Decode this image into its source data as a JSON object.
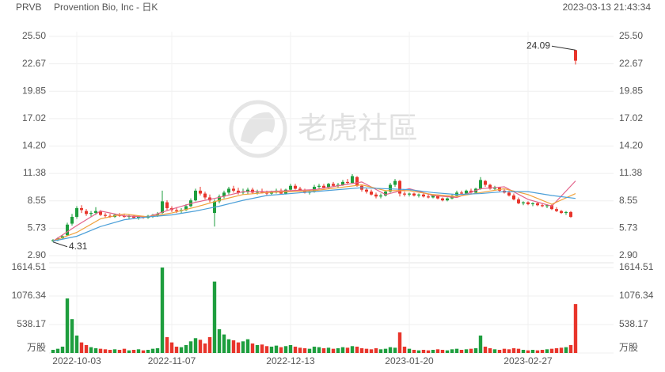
{
  "chart_data": {
    "type": "candlestick",
    "symbol": "PRVB",
    "title": "Provention Bio, Inc - 日K",
    "timestamp": "2023-03-13 21:43:34",
    "watermark": "老虎社區",
    "up_color": "#1e9e3e",
    "down_color": "#e8352b",
    "grid": true,
    "categories": [
      null,
      null,
      null,
      null,
      null,
      "2022-10-03",
      null,
      null,
      null,
      null,
      null,
      null,
      null,
      null,
      null,
      null,
      null,
      null,
      null,
      null,
      null,
      null,
      null,
      null,
      null,
      "2022-11-07",
      null,
      null,
      null,
      null,
      null,
      null,
      null,
      null,
      null,
      null,
      null,
      null,
      null,
      null,
      null,
      null,
      null,
      null,
      null,
      null,
      null,
      null,
      null,
      null,
      "2022-12-13",
      null,
      null,
      null,
      null,
      null,
      null,
      null,
      null,
      null,
      null,
      null,
      null,
      null,
      null,
      null,
      null,
      null,
      null,
      null,
      null,
      null,
      null,
      null,
      null,
      "2023-01-20",
      null,
      null,
      null,
      null,
      null,
      null,
      null,
      null,
      null,
      null,
      null,
      null,
      null,
      null,
      null,
      null,
      null,
      null,
      null,
      null,
      null,
      null,
      null,
      null,
      "2023-02-27",
      null,
      null,
      null,
      null,
      null,
      null,
      null,
      null,
      null,
      null
    ],
    "ylim": [
      2.9,
      25.5
    ],
    "yticks": [
      {
        "value": 2.9,
        "label": "2.90"
      },
      5.73,
      8.55,
      11.38,
      {
        "value": 14.2,
        "label": "14.20"
      },
      17.02,
      19.85,
      22.67,
      {
        "value": 25.5,
        "label": "25.50"
      }
    ],
    "ohlc": [
      [
        4.4,
        4.6,
        4.31,
        4.5
      ],
      [
        4.5,
        4.8,
        4.4,
        4.7
      ],
      [
        4.7,
        5.0,
        4.6,
        4.9
      ],
      [
        5.0,
        6.3,
        4.9,
        6.1
      ],
      [
        6.2,
        7.2,
        6.0,
        6.9
      ],
      [
        6.9,
        8.0,
        6.7,
        7.8
      ],
      [
        7.8,
        8.1,
        7.3,
        7.6
      ],
      [
        7.5,
        7.7,
        7.0,
        7.2
      ],
      [
        7.2,
        7.5,
        6.9,
        7.3
      ],
      [
        7.3,
        7.9,
        7.1,
        7.5
      ],
      [
        7.5,
        7.6,
        7.0,
        7.1
      ],
      [
        7.1,
        7.3,
        6.8,
        7.0
      ],
      [
        7.0,
        7.2,
        6.8,
        6.9
      ],
      [
        6.9,
        7.2,
        6.8,
        7.1
      ],
      [
        7.1,
        7.3,
        6.9,
        7.0
      ],
      [
        7.0,
        7.2,
        6.8,
        6.9
      ],
      [
        6.9,
        7.1,
        6.7,
        7.0
      ],
      [
        7.0,
        7.1,
        6.7,
        6.8
      ],
      [
        6.8,
        7.0,
        6.6,
        6.9
      ],
      [
        6.9,
        7.0,
        6.7,
        6.8
      ],
      [
        6.8,
        7.1,
        6.7,
        7.0
      ],
      [
        7.0,
        7.2,
        6.8,
        7.1
      ],
      [
        7.1,
        7.4,
        6.9,
        7.2
      ],
      [
        7.3,
        9.6,
        7.2,
        8.5
      ],
      [
        8.4,
        8.6,
        7.6,
        7.8
      ],
      [
        7.8,
        8.0,
        7.4,
        7.6
      ],
      [
        7.6,
        7.9,
        7.3,
        7.5
      ],
      [
        7.5,
        7.8,
        7.3,
        7.6
      ],
      [
        7.6,
        8.2,
        7.5,
        8.0
      ],
      [
        8.0,
        8.8,
        7.9,
        8.6
      ],
      [
        8.6,
        9.8,
        8.5,
        9.6
      ],
      [
        9.6,
        10.0,
        9.1,
        9.3
      ],
      [
        9.3,
        9.5,
        8.7,
        8.9
      ],
      [
        8.9,
        9.2,
        8.4,
        8.6
      ],
      [
        7.3,
        8.7,
        5.9,
        8.5
      ],
      [
        8.5,
        9.2,
        8.3,
        9.0
      ],
      [
        9.0,
        9.6,
        8.8,
        9.4
      ],
      [
        9.4,
        10.0,
        9.2,
        9.8
      ],
      [
        9.8,
        10.1,
        9.4,
        9.6
      ],
      [
        9.6,
        9.9,
        9.2,
        9.4
      ],
      [
        9.4,
        9.8,
        9.2,
        9.5
      ],
      [
        9.5,
        9.9,
        9.2,
        9.7
      ],
      [
        9.7,
        9.9,
        9.3,
        9.4
      ],
      [
        9.4,
        9.7,
        9.2,
        9.5
      ],
      [
        9.5,
        9.8,
        9.3,
        9.4
      ],
      [
        9.4,
        9.6,
        9.1,
        9.3
      ],
      [
        9.3,
        9.6,
        9.1,
        9.5
      ],
      [
        9.5,
        9.8,
        9.3,
        9.6
      ],
      [
        9.6,
        9.8,
        9.2,
        9.3
      ],
      [
        9.3,
        9.8,
        9.2,
        9.7
      ],
      [
        9.7,
        10.3,
        9.6,
        10.1
      ],
      [
        10.1,
        10.3,
        9.7,
        9.8
      ],
      [
        9.8,
        10.0,
        9.5,
        9.6
      ],
      [
        9.6,
        9.8,
        9.3,
        9.4
      ],
      [
        9.4,
        9.7,
        9.2,
        9.5
      ],
      [
        9.5,
        10.2,
        9.4,
        10.0
      ],
      [
        10.0,
        10.3,
        9.8,
        10.1
      ],
      [
        10.1,
        10.3,
        9.8,
        9.9
      ],
      [
        9.9,
        10.4,
        9.8,
        10.3
      ],
      [
        10.3,
        10.5,
        10.0,
        10.1
      ],
      [
        10.1,
        10.4,
        9.9,
        10.2
      ],
      [
        10.2,
        10.7,
        10.1,
        10.5
      ],
      [
        10.5,
        10.8,
        10.2,
        10.4
      ],
      [
        10.4,
        11.3,
        10.3,
        11.1
      ],
      [
        11.0,
        11.1,
        10.0,
        10.1
      ],
      [
        10.1,
        10.2,
        9.5,
        9.7
      ],
      [
        9.7,
        9.9,
        9.3,
        9.5
      ],
      [
        9.5,
        9.7,
        9.1,
        9.2
      ],
      [
        9.2,
        9.4,
        8.8,
        9.0
      ],
      [
        9.0,
        9.3,
        8.8,
        9.1
      ],
      [
        9.1,
        9.6,
        9.0,
        9.5
      ],
      [
        9.5,
        10.4,
        9.4,
        10.2
      ],
      [
        10.2,
        10.8,
        10.0,
        10.6
      ],
      [
        10.6,
        10.7,
        9.0,
        9.3
      ],
      [
        9.3,
        9.5,
        9.0,
        9.2
      ],
      [
        9.2,
        9.4,
        9.0,
        9.3
      ],
      [
        9.3,
        9.4,
        9.0,
        9.1
      ],
      [
        9.1,
        9.3,
        8.9,
        9.2
      ],
      [
        9.2,
        9.3,
        8.9,
        9.0
      ],
      [
        9.0,
        9.2,
        8.8,
        8.9
      ],
      [
        8.9,
        9.2,
        8.8,
        9.1
      ],
      [
        9.1,
        9.2,
        8.7,
        8.8
      ],
      [
        8.8,
        8.9,
        8.5,
        8.6
      ],
      [
        8.6,
        8.9,
        8.5,
        8.8
      ],
      [
        8.8,
        9.2,
        8.7,
        9.1
      ],
      [
        9.1,
        9.6,
        9.0,
        9.4
      ],
      [
        9.4,
        9.6,
        9.2,
        9.3
      ],
      [
        9.3,
        9.7,
        9.2,
        9.6
      ],
      [
        9.6,
        9.8,
        9.3,
        9.4
      ],
      [
        9.4,
        9.9,
        9.3,
        9.8
      ],
      [
        9.8,
        11.0,
        9.7,
        10.7
      ],
      [
        10.6,
        10.7,
        10.0,
        10.2
      ],
      [
        10.2,
        10.3,
        9.7,
        9.8
      ],
      [
        9.8,
        10.1,
        9.6,
        9.9
      ],
      [
        9.9,
        10.0,
        9.5,
        9.6
      ],
      [
        9.6,
        9.8,
        9.3,
        9.4
      ],
      [
        9.4,
        9.6,
        9.0,
        9.1
      ],
      [
        9.1,
        9.3,
        8.6,
        8.7
      ],
      [
        8.7,
        8.9,
        8.2,
        8.3
      ],
      [
        8.3,
        8.5,
        8.1,
        8.4
      ],
      [
        8.4,
        8.5,
        8.1,
        8.2
      ],
      [
        8.2,
        8.4,
        8.0,
        8.3
      ],
      [
        8.3,
        8.4,
        8.0,
        8.1
      ],
      [
        8.1,
        8.3,
        7.9,
        8.0
      ],
      [
        8.0,
        8.2,
        7.8,
        8.1
      ],
      [
        8.1,
        8.2,
        7.6,
        7.7
      ],
      [
        7.7,
        7.9,
        7.4,
        7.5
      ],
      [
        7.5,
        7.6,
        7.2,
        7.3
      ],
      [
        7.3,
        7.5,
        7.1,
        7.4
      ],
      [
        7.4,
        7.5,
        6.8,
        6.9
      ],
      [
        24.09,
        24.09,
        22.6,
        23.0
      ]
    ],
    "high_annotation": 24.09,
    "low_annotation": 4.31,
    "ma": [
      {
        "color": "#e3628a",
        "x": [
          0,
          5,
          10,
          15,
          20,
          25,
          30,
          35,
          40,
          45,
          50,
          55,
          60,
          65,
          70,
          75,
          80,
          85,
          90,
          95,
          100,
          105,
          110
        ],
        "values": [
          4.4,
          6.0,
          7.5,
          7.0,
          6.9,
          7.7,
          8.4,
          8.9,
          9.5,
          9.5,
          9.6,
          9.7,
          10.1,
          10.5,
          9.2,
          9.8,
          9.1,
          8.9,
          9.8,
          10.0,
          8.7,
          8.0,
          10.6
        ]
      },
      {
        "color": "#f0a13c",
        "x": [
          0,
          5,
          10,
          15,
          20,
          25,
          30,
          35,
          40,
          45,
          50,
          55,
          60,
          65,
          70,
          75,
          80,
          85,
          90,
          95,
          100,
          105,
          110
        ],
        "values": [
          4.4,
          5.3,
          6.7,
          7.2,
          6.9,
          7.3,
          7.9,
          8.6,
          9.2,
          9.4,
          9.5,
          9.6,
          9.9,
          10.2,
          9.6,
          9.6,
          9.2,
          9.0,
          9.4,
          9.8,
          9.2,
          8.2,
          9.3
        ]
      },
      {
        "color": "#4b9fd8",
        "x": [
          0,
          5,
          10,
          15,
          20,
          25,
          30,
          35,
          40,
          45,
          50,
          55,
          60,
          65,
          70,
          75,
          80,
          85,
          90,
          95,
          100,
          105,
          110
        ],
        "values": [
          4.4,
          4.9,
          5.9,
          6.6,
          6.9,
          7.1,
          7.5,
          8.0,
          8.6,
          9.1,
          9.3,
          9.5,
          9.7,
          9.9,
          9.8,
          9.7,
          9.4,
          9.2,
          9.3,
          9.5,
          9.5,
          9.1,
          8.8
        ]
      }
    ],
    "volume": {
      "ylim": [
        0,
        1614.51
      ],
      "yticks": [
        {
          "value": 0,
          "label": "万股"
        },
        538.17,
        1076.34,
        1614.51
      ],
      "values": [
        60,
        80,
        120,
        1030,
        640,
        330,
        200,
        150,
        110,
        90,
        80,
        70,
        60,
        70,
        60,
        80,
        50,
        60,
        70,
        50,
        60,
        80,
        90,
        1614.51,
        300,
        200,
        120,
        110,
        150,
        220,
        280,
        250,
        180,
        300,
        1350,
        450,
        350,
        260,
        240,
        200,
        220,
        260,
        180,
        150,
        160,
        130,
        120,
        140,
        110,
        130,
        150,
        120,
        100,
        90,
        80,
        120,
        110,
        90,
        100,
        80,
        90,
        110,
        100,
        130,
        120,
        90,
        80,
        70,
        90,
        70,
        80,
        110,
        100,
        390,
        120,
        80,
        60,
        50,
        60,
        50,
        60,
        70,
        60,
        50,
        70,
        80,
        60,
        70,
        80,
        90,
        330,
        120,
        90,
        70,
        60,
        80,
        70,
        90,
        80,
        60,
        50,
        60,
        50,
        60,
        70,
        80,
        90,
        100,
        110,
        150,
        925
      ]
    }
  }
}
